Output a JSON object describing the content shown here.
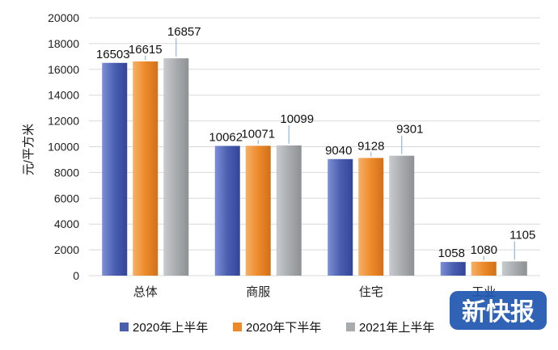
{
  "chart_data": {
    "type": "bar",
    "categories": [
      "总体",
      "商服",
      "住宅",
      "工业"
    ],
    "series": [
      {
        "name": "2020年上半年",
        "color": "#4a5fb0",
        "values": [
          16503,
          10062,
          9040,
          1058
        ]
      },
      {
        "name": "2020年下半年",
        "color": "#ec8a2a",
        "values": [
          16615,
          10071,
          9128,
          1080
        ]
      },
      {
        "name": "2021年上半年",
        "color": "#a9acaf",
        "values": [
          16857,
          10099,
          9301,
          1105
        ]
      }
    ],
    "ylabel": "元/平方米",
    "ylim": [
      0,
      20000
    ],
    "yticks": [
      0,
      2000,
      4000,
      6000,
      8000,
      10000,
      12000,
      14000,
      16000,
      18000,
      20000
    ],
    "grid": true,
    "legend": "bottom"
  },
  "watermark": {
    "text": "新快报",
    "color": "#1e56b0"
  }
}
